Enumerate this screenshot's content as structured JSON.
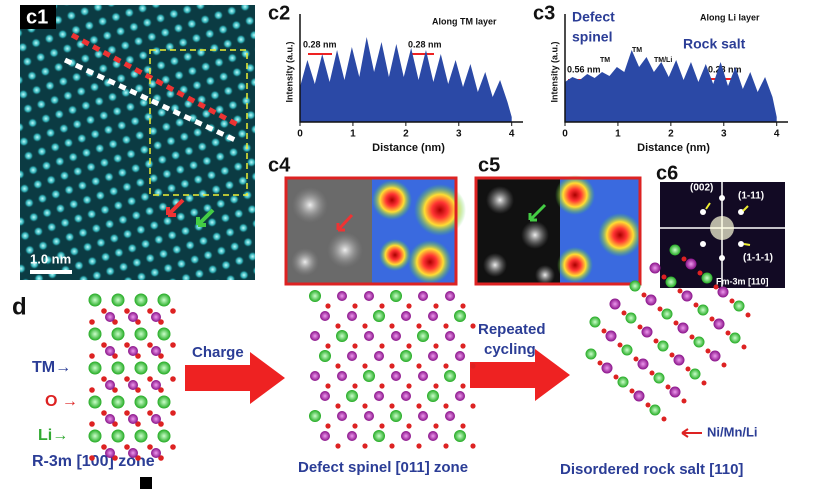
{
  "chart_data": [
    {
      "type": "area",
      "panel": "c2",
      "xlabel": "Distance (nm)",
      "ylabel": "Intensity (a.u.)",
      "color": "#2b49a6",
      "annotations": [
        "Along TM layer",
        "0.28 nm",
        "0.28 nm"
      ],
      "x": [
        0,
        0.14,
        0.28,
        0.42,
        0.56,
        0.7,
        0.84,
        0.98,
        1.12,
        1.26,
        1.4,
        1.54,
        1.68,
        1.82,
        1.96,
        2.1,
        2.24,
        2.38,
        2.52,
        2.66,
        2.8,
        2.94,
        3.08,
        3.22,
        3.36,
        3.5,
        3.64,
        3.78,
        3.92,
        4.0
      ],
      "values": [
        0.35,
        0.62,
        0.38,
        0.68,
        0.4,
        0.72,
        0.42,
        0.75,
        0.45,
        0.85,
        0.5,
        0.8,
        0.45,
        0.78,
        0.45,
        0.74,
        0.42,
        0.72,
        0.4,
        0.68,
        0.38,
        0.62,
        0.35,
        0.58,
        0.3,
        0.5,
        0.25,
        0.42,
        0.2,
        0.05
      ],
      "xlim": [
        0,
        4.1
      ],
      "xticks": [
        0,
        1,
        2,
        3,
        4
      ],
      "ylim": [
        0,
        1
      ]
    },
    {
      "type": "area",
      "panel": "c3",
      "xlabel": "Distance (nm)",
      "ylabel": "Intensity (a.u.)",
      "color": "#2b49a6",
      "annotations": [
        "Defect",
        "spinel",
        "Along Li layer",
        "Rock salt",
        "0.56 nm",
        "TM",
        "TM",
        "TM/Li",
        "0.28 nm"
      ],
      "x": [
        0,
        0.14,
        0.28,
        0.42,
        0.56,
        0.7,
        0.84,
        0.98,
        1.12,
        1.26,
        1.4,
        1.54,
        1.68,
        1.82,
        1.96,
        2.1,
        2.24,
        2.38,
        2.52,
        2.66,
        2.8,
        2.94,
        3.08,
        3.22,
        3.36,
        3.5,
        3.64,
        3.78,
        3.92,
        4.0
      ],
      "values": [
        0.4,
        0.45,
        0.42,
        0.48,
        0.44,
        0.5,
        0.46,
        0.55,
        0.5,
        0.72,
        0.55,
        0.65,
        0.5,
        0.6,
        0.45,
        0.62,
        0.42,
        0.6,
        0.4,
        0.58,
        0.38,
        0.6,
        0.36,
        0.55,
        0.33,
        0.5,
        0.3,
        0.45,
        0.25,
        0.05
      ],
      "xlim": [
        0,
        4.1
      ],
      "xticks": [
        0,
        1,
        2,
        3,
        4
      ],
      "ylim": [
        0,
        1
      ]
    }
  ],
  "figure": {
    "c1": {
      "label": "c1",
      "scale": "1.0 nm"
    },
    "c4": {
      "label": "c4"
    },
    "c5": {
      "label": "c5"
    },
    "c6": {
      "label": "c6",
      "spots": [
        "(002)",
        "(1-11)",
        "(1-1-1)"
      ],
      "zone": "Fm-3m [110]"
    },
    "d": {
      "label": "d",
      "sites": [
        "TM→",
        "O →",
        "Li→"
      ],
      "zones": [
        "R-3m [100] zone",
        "Defect spinel [011] zone",
        "Disordered rock salt [110]"
      ],
      "steps": [
        "Charge",
        "Repeated",
        "cycling"
      ],
      "site_note": "Ni/Mn/Li"
    }
  }
}
